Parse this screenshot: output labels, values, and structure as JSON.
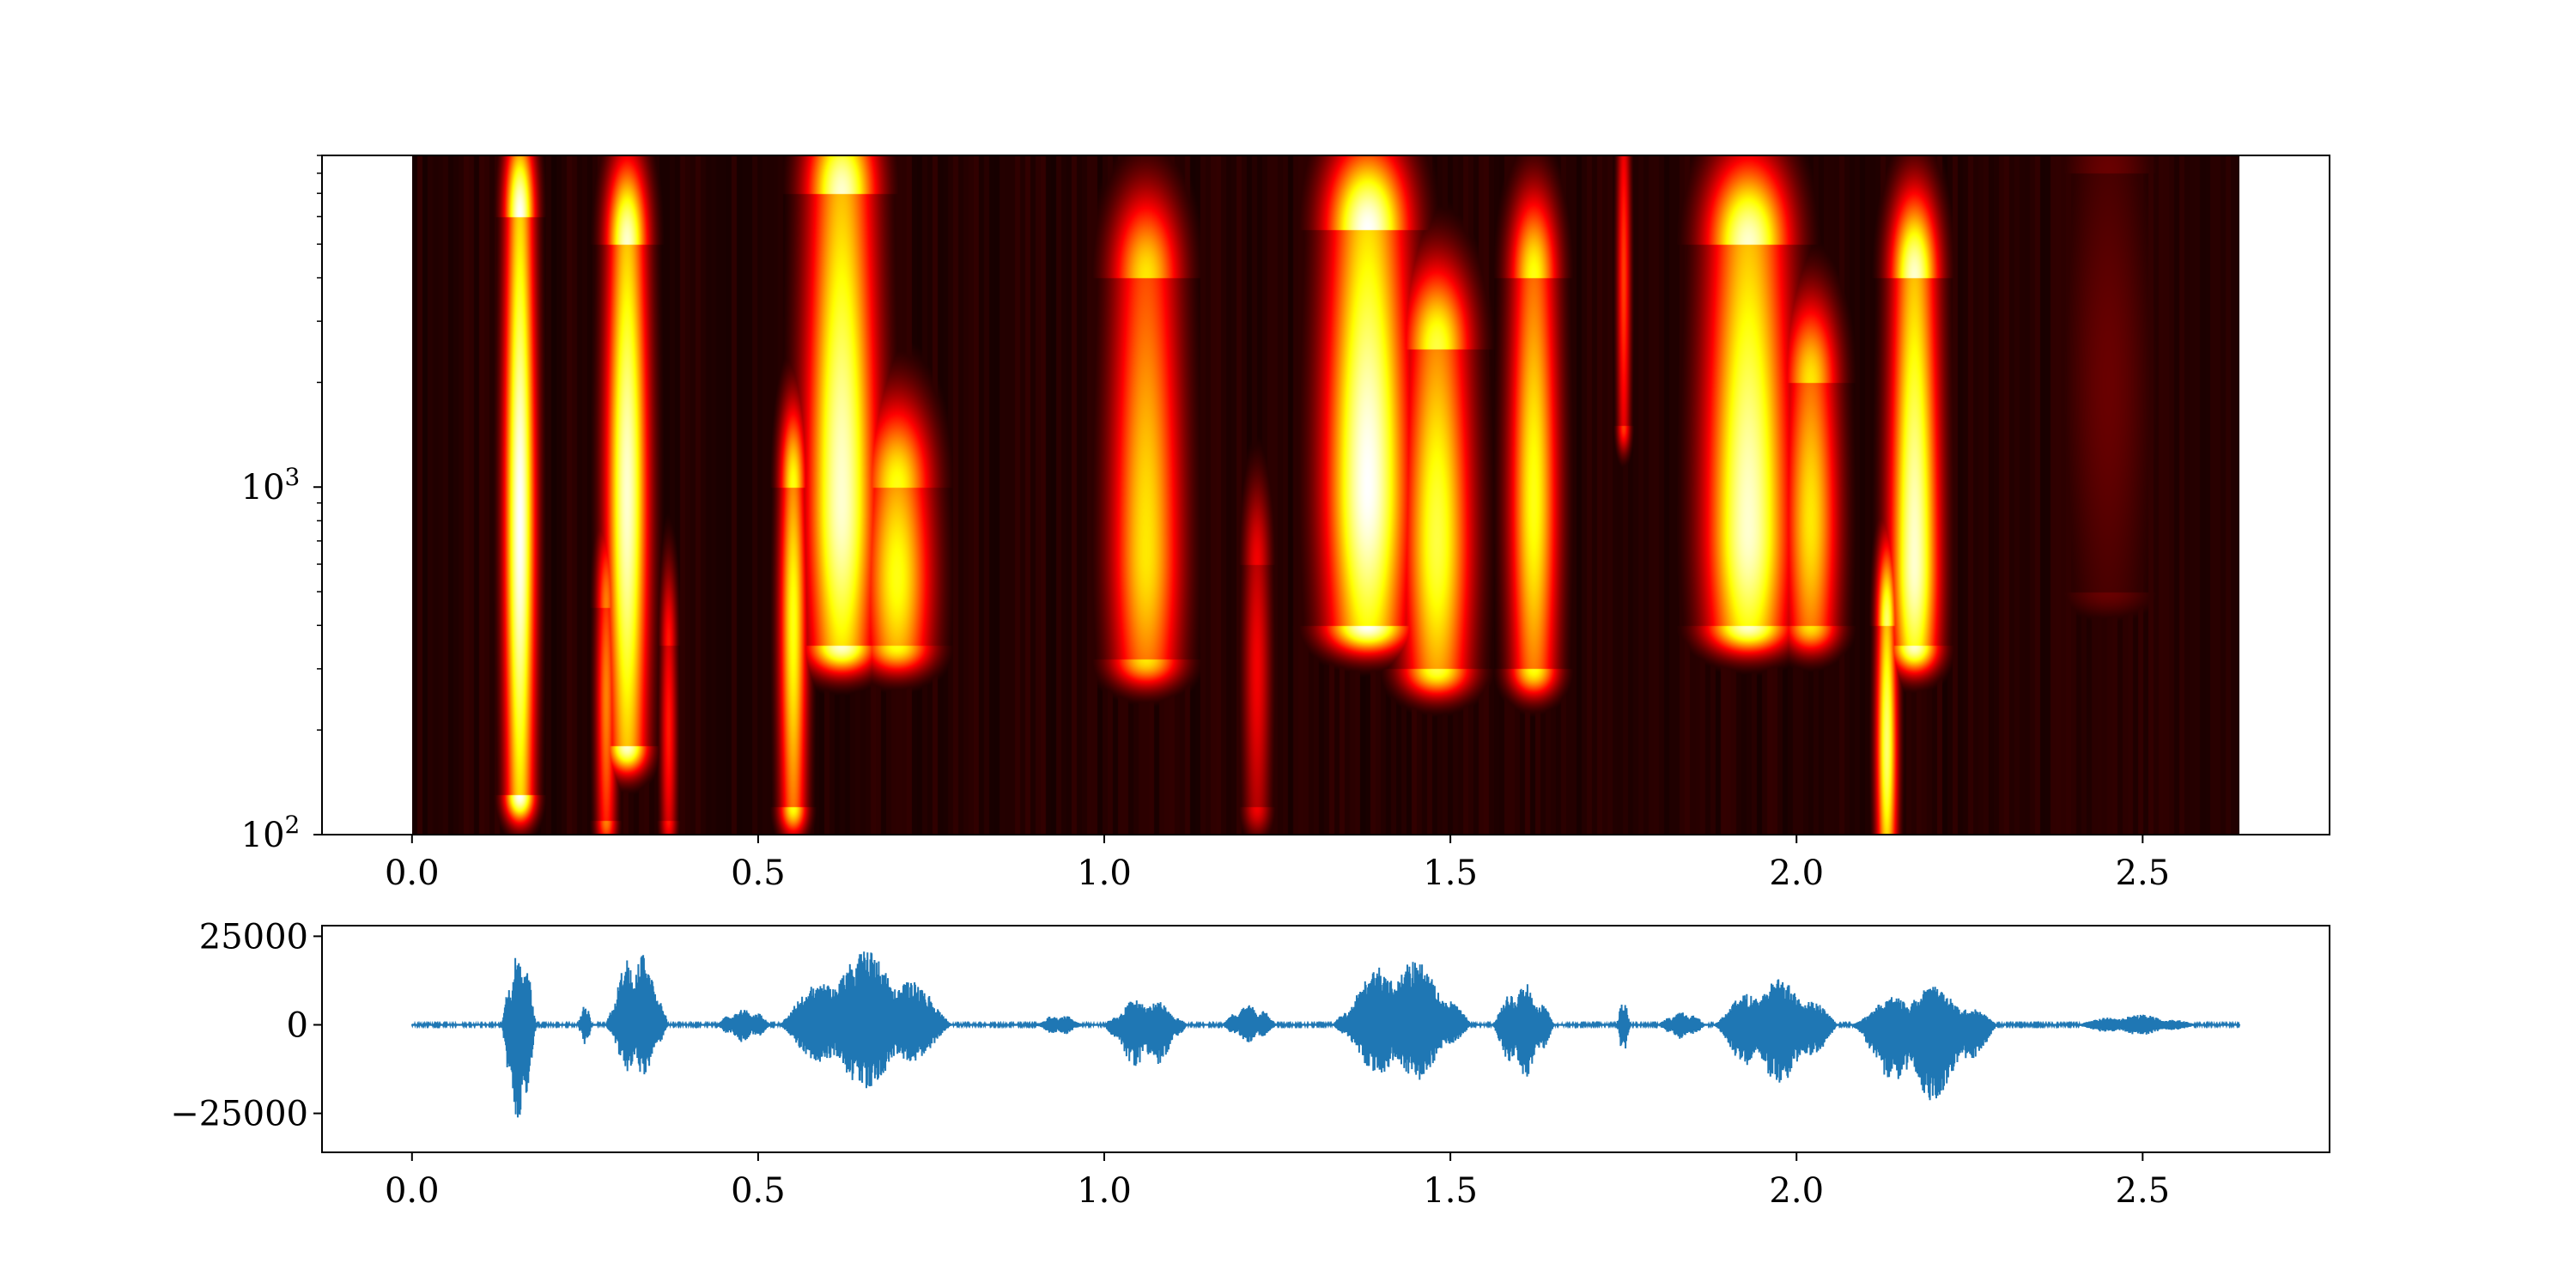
{
  "chart_data": [
    {
      "type": "heatmap",
      "title": "",
      "xlabel": "",
      "ylabel": "",
      "xlim": [
        -0.13,
        2.77
      ],
      "xdata_range": [
        0.0,
        2.64
      ],
      "ylim": [
        100,
        9000
      ],
      "yscale": "log",
      "colormap": "hot",
      "x_ticks": [
        0.0,
        0.5,
        1.0,
        1.5,
        2.0,
        2.5
      ],
      "x_tick_labels": [
        "0.0",
        "0.5",
        "1.0",
        "1.5",
        "2.0",
        "2.5"
      ],
      "y_ticks": [
        {
          "value": 100,
          "base": "10",
          "exp": "2"
        },
        {
          "value": 1000,
          "base": "10",
          "exp": "3"
        }
      ],
      "blobs": [
        {
          "t": 0.155,
          "f_low": 130,
          "f_high": 6000,
          "f_peak": 800,
          "intensity": 1.0,
          "width": 0.022
        },
        {
          "t": 0.31,
          "f_low": 180,
          "f_high": 5000,
          "f_peak": 950,
          "intensity": 0.95,
          "width": 0.03
        },
        {
          "t": 0.28,
          "f_low": 110,
          "f_high": 450,
          "f_peak": 250,
          "intensity": 0.55,
          "width": 0.015
        },
        {
          "t": 0.37,
          "f_low": 110,
          "f_high": 350,
          "f_peak": 200,
          "intensity": 0.4,
          "width": 0.012
        },
        {
          "t": 0.55,
          "f_low": 120,
          "f_high": 1000,
          "f_peak": 420,
          "intensity": 0.75,
          "width": 0.02
        },
        {
          "t": 0.62,
          "f_low": 350,
          "f_high": 7000,
          "f_peak": 900,
          "intensity": 0.95,
          "width": 0.05
        },
        {
          "t": 0.7,
          "f_low": 350,
          "f_high": 1000,
          "f_peak": 550,
          "intensity": 0.75,
          "width": 0.05
        },
        {
          "t": 1.06,
          "f_low": 320,
          "f_high": 4000,
          "f_peak": 650,
          "intensity": 0.7,
          "width": 0.05
        },
        {
          "t": 1.22,
          "f_low": 120,
          "f_high": 600,
          "f_peak": 300,
          "intensity": 0.35,
          "width": 0.02
        },
        {
          "t": 1.38,
          "f_low": 400,
          "f_high": 5500,
          "f_peak": 1000,
          "intensity": 1.0,
          "width": 0.06
        },
        {
          "t": 1.48,
          "f_low": 300,
          "f_high": 2500,
          "f_peak": 700,
          "intensity": 0.8,
          "width": 0.05
        },
        {
          "t": 1.62,
          "f_low": 300,
          "f_high": 4000,
          "f_peak": 900,
          "intensity": 0.75,
          "width": 0.035
        },
        {
          "t": 1.75,
          "f_low": 1500,
          "f_high": 9000,
          "f_peak": 4000,
          "intensity": 0.45,
          "width": 0.01
        },
        {
          "t": 1.93,
          "f_low": 400,
          "f_high": 5000,
          "f_peak": 750,
          "intensity": 0.95,
          "width": 0.06
        },
        {
          "t": 2.02,
          "f_low": 400,
          "f_high": 2000,
          "f_peak": 800,
          "intensity": 0.7,
          "width": 0.04
        },
        {
          "t": 2.13,
          "f_low": 100,
          "f_high": 400,
          "f_peak": 180,
          "intensity": 0.85,
          "width": 0.015
        },
        {
          "t": 2.17,
          "f_low": 350,
          "f_high": 4000,
          "f_peak": 600,
          "intensity": 0.95,
          "width": 0.035
        },
        {
          "t": 2.45,
          "f_low": 500,
          "f_high": 8000,
          "f_peak": 2000,
          "intensity": 0.15,
          "width": 0.07
        }
      ]
    },
    {
      "type": "line",
      "title": "",
      "xlabel": "",
      "ylabel": "",
      "xlim": [
        -0.13,
        2.77
      ],
      "ylim": [
        -36000,
        28000
      ],
      "line_color": "#1f77b4",
      "x_ticks": [
        0.0,
        0.5,
        1.0,
        1.5,
        2.0,
        2.5
      ],
      "x_tick_labels": [
        "0.0",
        "0.5",
        "1.0",
        "1.5",
        "2.0",
        "2.5"
      ],
      "y_ticks": [
        25000,
        0,
        -25000
      ],
      "y_tick_labels": [
        "25000",
        "0",
        "−25000"
      ],
      "duration": 2.64,
      "segments": [
        {
          "start": 0.13,
          "end": 0.18,
          "amp_max": 22000,
          "amp_min": -29000
        },
        {
          "start": 0.24,
          "end": 0.26,
          "amp_max": 6000,
          "amp_min": -6000
        },
        {
          "start": 0.28,
          "end": 0.37,
          "amp_max": 23000,
          "amp_min": -16000
        },
        {
          "start": 0.44,
          "end": 0.52,
          "amp_max": 5000,
          "amp_min": -5000
        },
        {
          "start": 0.53,
          "end": 0.78,
          "amp_max": 21000,
          "amp_min": -18000
        },
        {
          "start": 0.9,
          "end": 0.97,
          "amp_max": 3000,
          "amp_min": -3000
        },
        {
          "start": 1.0,
          "end": 1.12,
          "amp_max": 8000,
          "amp_min": -13000
        },
        {
          "start": 1.17,
          "end": 1.25,
          "amp_max": 6000,
          "amp_min": -5000
        },
        {
          "start": 1.33,
          "end": 1.53,
          "amp_max": 20000,
          "amp_min": -17000
        },
        {
          "start": 1.56,
          "end": 1.65,
          "amp_max": 12000,
          "amp_min": -15000
        },
        {
          "start": 1.74,
          "end": 1.76,
          "amp_max": 7000,
          "amp_min": -8000
        },
        {
          "start": 1.8,
          "end": 1.87,
          "amp_max": 4000,
          "amp_min": -4000
        },
        {
          "start": 1.88,
          "end": 2.06,
          "amp_max": 13000,
          "amp_min": -17000
        },
        {
          "start": 2.08,
          "end": 2.29,
          "amp_max": 11000,
          "amp_min": -22000
        },
        {
          "start": 2.4,
          "end": 2.58,
          "amp_max": 3000,
          "amp_min": -3000
        }
      ]
    }
  ]
}
